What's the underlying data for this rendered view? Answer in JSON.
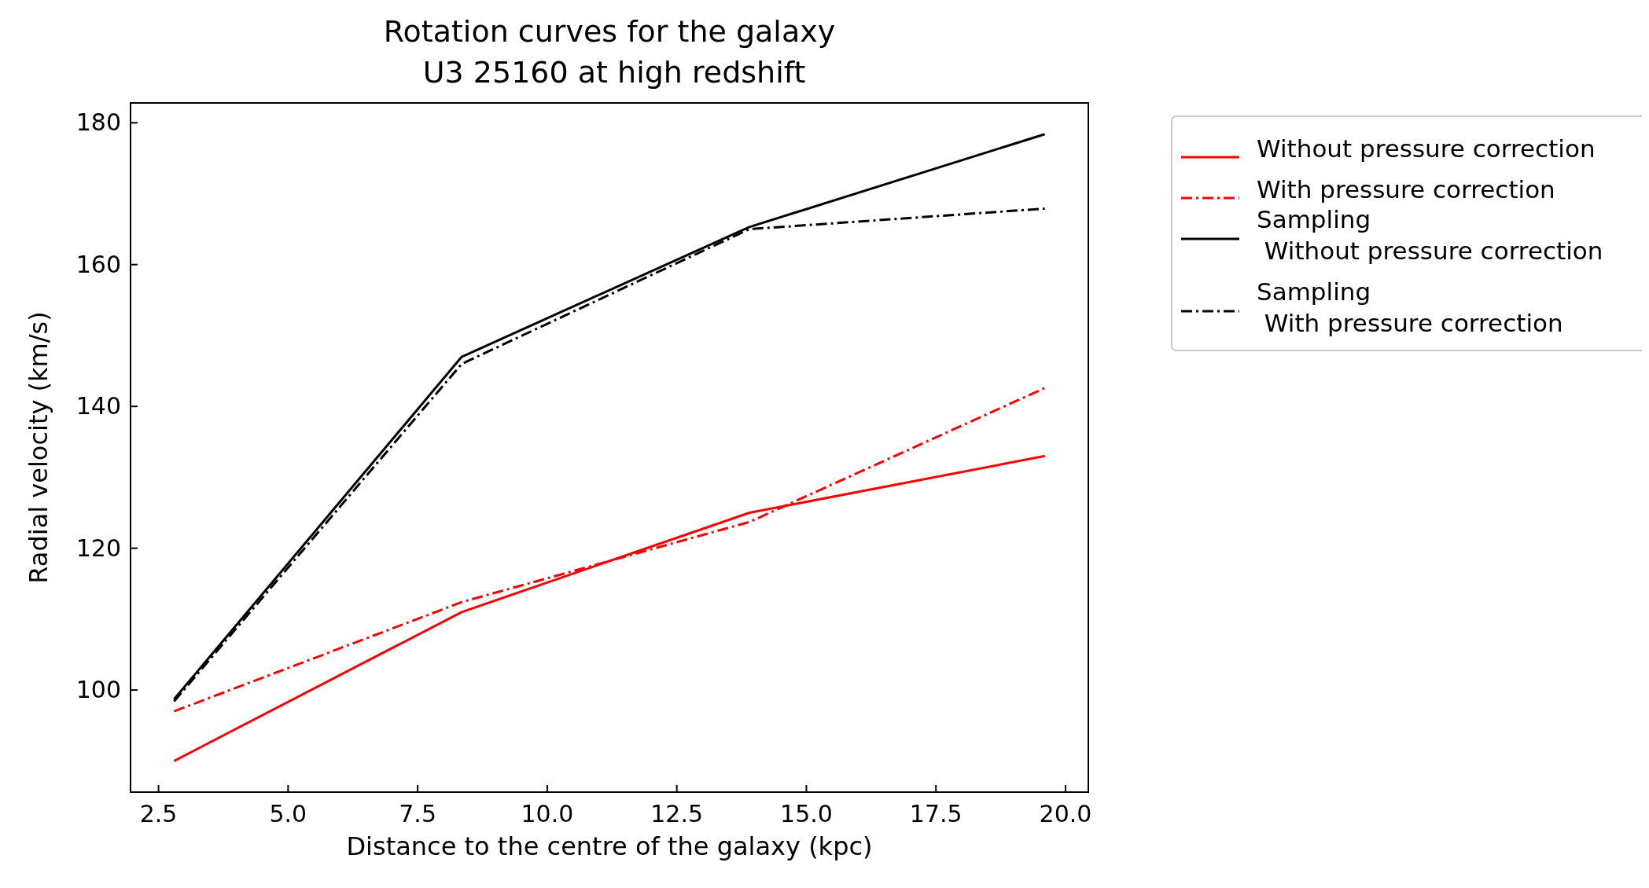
{
  "chart_data": {
    "type": "line",
    "title": "Rotation curves for the galaxy\n U3 25160 at high redshift",
    "xlabel": "Distance to the centre of the galaxy (kpc)",
    "ylabel": "Radial velocity (km/s)",
    "x": [
      2.8,
      8.35,
      13.9,
      19.6
    ],
    "series": [
      {
        "name": "Without pressure correction",
        "color": "#ff0000",
        "line_style": "solid",
        "values": [
          90,
          111,
          125,
          133
        ]
      },
      {
        "name": "With pressure correction",
        "color": "#ff0000",
        "line_style": "dashdot",
        "values": [
          97,
          112.4,
          123.7,
          142.6
        ]
      },
      {
        "name": "Sampling\n Without pressure correction",
        "color": "#000000",
        "line_style": "solid",
        "values": [
          98.7,
          147,
          165.3,
          178.4
        ]
      },
      {
        "name": "Sampling\n With pressure correction",
        "color": "#000000",
        "line_style": "dashdot",
        "values": [
          98.4,
          146,
          165,
          167.9
        ]
      }
    ],
    "xlim": [
      1.96,
      20.44
    ],
    "ylim": [
      85.6,
      182.8
    ],
    "xticks": [
      {
        "value": 2.5,
        "label": "2.5"
      },
      {
        "value": 5,
        "label": "5.0"
      },
      {
        "value": 7.5,
        "label": "7.5"
      },
      {
        "value": 10,
        "label": "10.0"
      },
      {
        "value": 12.5,
        "label": "12.5"
      },
      {
        "value": 15,
        "label": "15.0"
      },
      {
        "value": 17.5,
        "label": "17.5"
      },
      {
        "value": 20,
        "label": "20.0"
      }
    ],
    "yticks": [
      100,
      120,
      140,
      160,
      180
    ],
    "grid": false,
    "legend": "right",
    "marker": "none"
  }
}
